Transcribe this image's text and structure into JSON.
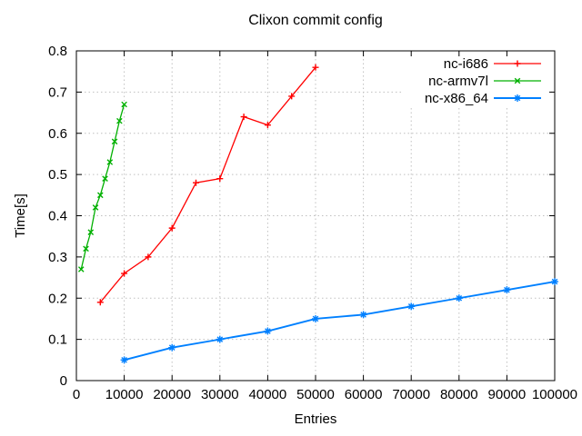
{
  "chart_data": {
    "type": "line",
    "title": "Clixon commit config",
    "xlabel": "Entries",
    "ylabel": "Time[s]",
    "xlim": [
      0,
      100000
    ],
    "ylim": [
      0,
      0.8
    ],
    "xticks": [
      0,
      10000,
      20000,
      30000,
      40000,
      50000,
      60000,
      70000,
      80000,
      90000,
      100000
    ],
    "yticks": [
      0,
      0.1,
      0.2,
      0.3,
      0.4,
      0.5,
      0.6,
      0.7,
      0.8
    ],
    "grid": true,
    "grid_color": "#c0c0c0",
    "axis_color": "#000000",
    "background": "#ffffff",
    "legend": {
      "position": "top-right-inside",
      "entries": [
        "nc-i686",
        "nc-armv7l",
        "nc-x86_64"
      ]
    },
    "series": [
      {
        "name": "nc-i686",
        "color": "#ff0000",
        "marker": "plus",
        "line_width": 1.3,
        "points": [
          [
            5000,
            0.19
          ],
          [
            10000,
            0.26
          ],
          [
            15000,
            0.3
          ],
          [
            20000,
            0.37
          ],
          [
            25000,
            0.48
          ],
          [
            30000,
            0.49
          ],
          [
            35000,
            0.64
          ],
          [
            40000,
            0.62
          ],
          [
            45000,
            0.69
          ],
          [
            50000,
            0.76
          ]
        ]
      },
      {
        "name": "nc-armv7l",
        "color": "#00b000",
        "marker": "cross",
        "line_width": 1.3,
        "points": [
          [
            1000,
            0.27
          ],
          [
            2000,
            0.32
          ],
          [
            3000,
            0.36
          ],
          [
            4000,
            0.42
          ],
          [
            5000,
            0.45
          ],
          [
            6000,
            0.49
          ],
          [
            7000,
            0.53
          ],
          [
            8000,
            0.58
          ],
          [
            9000,
            0.63
          ],
          [
            10000,
            0.67
          ]
        ]
      },
      {
        "name": "nc-x86_64",
        "color": "#0080ff",
        "marker": "asterisk",
        "line_width": 1.9,
        "points": [
          [
            10000,
            0.05
          ],
          [
            20000,
            0.08
          ],
          [
            30000,
            0.1
          ],
          [
            40000,
            0.12
          ],
          [
            50000,
            0.15
          ],
          [
            60000,
            0.16
          ],
          [
            70000,
            0.18
          ],
          [
            80000,
            0.2
          ],
          [
            90000,
            0.22
          ],
          [
            100000,
            0.24
          ]
        ]
      }
    ]
  }
}
